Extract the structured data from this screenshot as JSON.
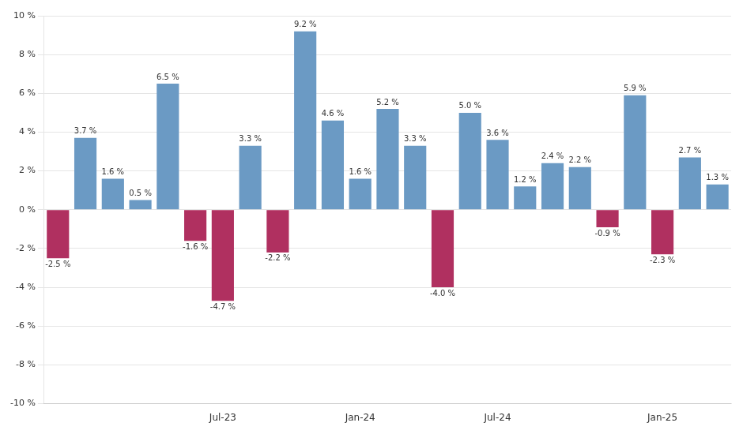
{
  "chart_data": {
    "type": "bar",
    "categories": [
      null,
      null,
      null,
      null,
      null,
      null,
      "Jul-23",
      null,
      null,
      null,
      null,
      "Jan-24",
      null,
      null,
      null,
      null,
      "Jul-24",
      null,
      null,
      null,
      null,
      null,
      "Jan-25",
      null,
      null
    ],
    "values": [
      -2.5,
      3.7,
      1.6,
      0.5,
      6.5,
      -1.6,
      -4.7,
      3.3,
      -2.2,
      9.2,
      4.6,
      1.6,
      5.2,
      3.3,
      -4.0,
      5.0,
      3.6,
      1.2,
      2.4,
      2.2,
      -0.9,
      5.9,
      -2.3,
      2.7,
      1.3
    ],
    "value_labels": [
      "-2.5 %",
      "3.7 %",
      "1.6 %",
      "0.5 %",
      "6.5 %",
      "-1.6 %",
      "-4.7 %",
      "3.3 %",
      "-2.2 %",
      "9.2 %",
      "4.6 %",
      "1.6 %",
      "5.2 %",
      "3.3 %",
      "-4.0 %",
      "5.0 %",
      "3.6 %",
      "1.2 %",
      "2.4 %",
      "2.2 %",
      "-0.9 %",
      "5.9 %",
      "-2.3 %",
      "2.7 %",
      "1.3 %"
    ],
    "colors": [
      "#b03060",
      "#6b9ac4",
      "#6b9ac4",
      "#6b9ac4",
      "#6b9ac4",
      "#b03060",
      "#b03060",
      "#6b9ac4",
      "#b03060",
      "#6b9ac4",
      "#6b9ac4",
      "#6b9ac4",
      "#6b9ac4",
      "#6b9ac4",
      "#b03060",
      "#6b9ac4",
      "#6b9ac4",
      "#6b9ac4",
      "#6b9ac4",
      "#6b9ac4",
      "#b03060",
      "#6b9ac4",
      "#b03060",
      "#6b9ac4",
      "#6b9ac4"
    ],
    "ylim": [
      -10,
      10
    ],
    "yticks": [
      {
        "value": -10,
        "label": "-10 %"
      },
      {
        "value": -8,
        "label": "-8 %"
      },
      {
        "value": -6,
        "label": "-6 %"
      },
      {
        "value": -4,
        "label": "-4 %"
      },
      {
        "value": -2,
        "label": "-2 %"
      },
      {
        "value": 0,
        "label": "0 %"
      },
      {
        "value": 2,
        "label": "2 %"
      },
      {
        "value": 4,
        "label": "4 %"
      },
      {
        "value": 6,
        "label": "6 %"
      },
      {
        "value": 8,
        "label": "8 %"
      },
      {
        "value": 10,
        "label": "10 %"
      }
    ],
    "grid": true,
    "data_labels": true
  }
}
